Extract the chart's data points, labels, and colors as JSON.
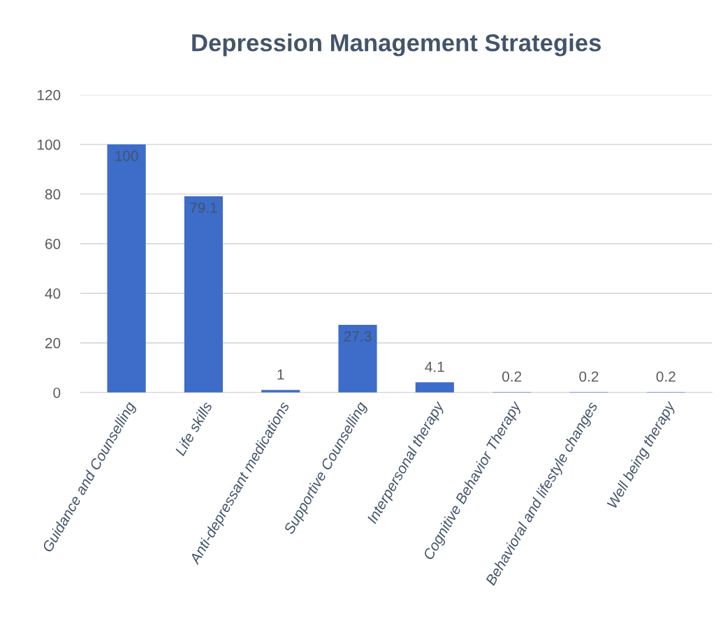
{
  "chart_data": {
    "type": "bar",
    "title": "Depression Management Strategies",
    "categories": [
      "Guidance and Counselling",
      "Life skills",
      "Anti-depressant medications",
      "Supportive Counselling",
      "Interpersonal therapy",
      "Cognitive Behavior Therapy",
      "Behavioral and lifestyle changes",
      "Well being therapy"
    ],
    "values": [
      100,
      79.1,
      1,
      27.3,
      4.1,
      0.2,
      0.2,
      0.2
    ],
    "color": "#3d6cc9",
    "ylim": [
      0,
      120
    ],
    "yticks": [
      0,
      20,
      40,
      60,
      80,
      100,
      120
    ],
    "grid": "y",
    "data_labels": true
  }
}
